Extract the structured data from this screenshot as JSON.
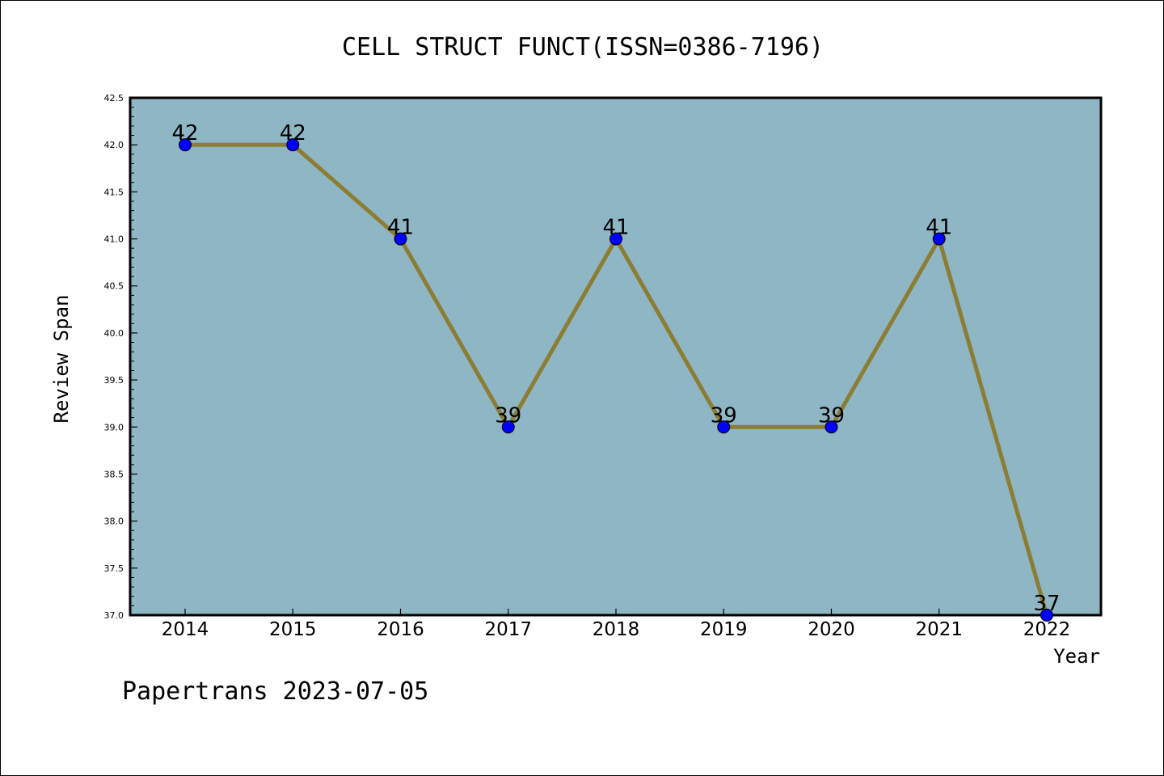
{
  "chart_data": {
    "type": "line",
    "title": "CELL STRUCT FUNCT(ISSN=0386-7196)",
    "xlabel": "Year",
    "ylabel": "Review Span",
    "x": [
      "2014",
      "2015",
      "2016",
      "2017",
      "2018",
      "2019",
      "2020",
      "2021",
      "2022"
    ],
    "series": [
      {
        "values": [
          42,
          42,
          41,
          39,
          41,
          39,
          39,
          41,
          37
        ]
      }
    ],
    "ylim": [
      37.0,
      42.5
    ],
    "yticks": [
      "37.0",
      "37.5",
      "38.0",
      "38.5",
      "39.0",
      "39.5",
      "40.0",
      "40.5",
      "41.0",
      "41.5",
      "42.0",
      "42.5"
    ],
    "grid": false,
    "legend": "none",
    "colors": {
      "plot_background": "#8fb6c4",
      "line": "#8b7d32",
      "marker": "#0000ff"
    }
  },
  "footer": {
    "text": "Papertrans 2023-07-05"
  }
}
